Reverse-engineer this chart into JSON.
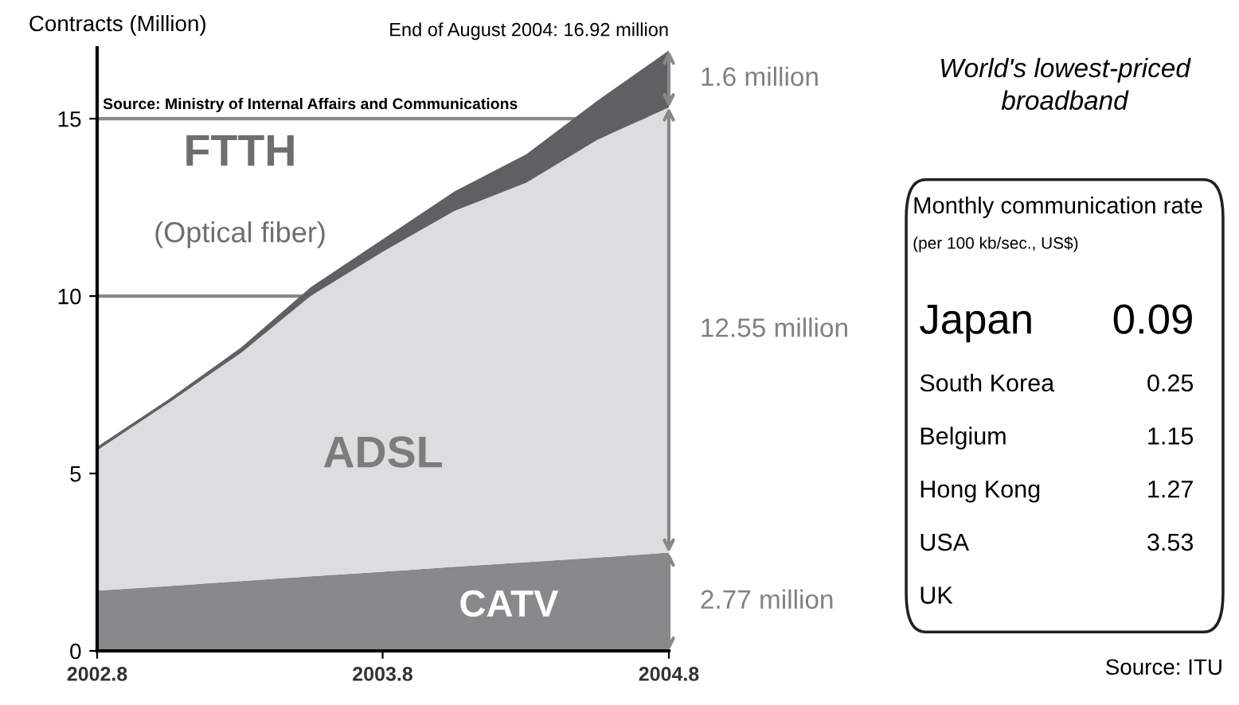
{
  "chart_data": [
    {
      "type": "area",
      "stacked": true,
      "ylabel": "Contracts (Million)",
      "x": [
        "2002-08",
        "2002-11",
        "2003-02",
        "2003-05",
        "2003-08",
        "2003-11",
        "2004-02",
        "2004-05",
        "2004-08"
      ],
      "series": [
        {
          "name": "CATV",
          "color": "#88898b",
          "values": [
            1.7,
            1.83,
            1.97,
            2.1,
            2.23,
            2.37,
            2.5,
            2.63,
            2.77
          ]
        },
        {
          "name": "ADSL",
          "color": "#dcdddf",
          "values": [
            3.95,
            5.17,
            6.43,
            7.9,
            9.02,
            10.03,
            10.7,
            11.77,
            12.55
          ]
        },
        {
          "name": "FTTH",
          "color": "#5f6062",
          "values": [
            0.1,
            0.1,
            0.15,
            0.25,
            0.35,
            0.55,
            0.8,
            1.1,
            1.6
          ]
        }
      ],
      "xlim": [
        "2002-08",
        "2004-08"
      ],
      "xticks": [
        {
          "value": "2002-08",
          "label": "2002.8"
        },
        {
          "value": "2003-08",
          "label": "2003.8"
        },
        {
          "value": "2004-08",
          "label": "2004.8"
        }
      ],
      "ylim": [
        0,
        17
      ],
      "yticks": [
        0,
        5,
        10,
        15
      ],
      "grid": "y",
      "legend": false,
      "annotations": [
        {
          "text": "End of August 2004: 16.92 million",
          "x": "2004-08",
          "y": 16.92
        },
        {
          "text": "1.6 million",
          "x": "2004-08",
          "y": 16.12
        },
        {
          "text": "12.55 million",
          "x": "2004-08",
          "y": 9.045
        },
        {
          "text": "2.77 million",
          "x": "2004-08",
          "y": 1.385
        },
        "(Optical fiber)",
        "Source: Ministry of Internal Affairs and Communications"
      ]
    },
    {
      "type": "other",
      "title": "World's lowest-priced broadband",
      "subtitle": "Monthly communication rate",
      "categories": [
        "Japan",
        "South Korea",
        "Belgium",
        "Hong Kong",
        "USA",
        "UK"
      ],
      "values": [
        0.09,
        0.25,
        1.15,
        1.27,
        3.53,
        null
      ],
      "data_labels": true,
      "annotations": [
        "(per 100 kb/sec., US$)",
        "Source: ITU"
      ]
    }
  ]
}
